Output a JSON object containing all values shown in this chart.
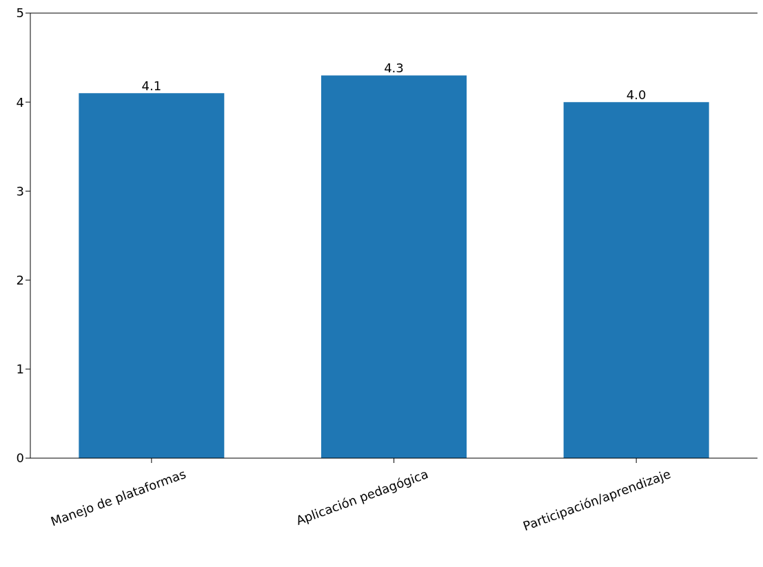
{
  "chart_data": {
    "type": "bar",
    "categories": [
      "Manejo de plataformas",
      "Aplicación pedagógica",
      "Participación/aprendizaje"
    ],
    "values": [
      4.1,
      4.3,
      4.0
    ],
    "value_labels": [
      "4.1",
      "4.3",
      "4.0"
    ],
    "color": "#1f77b4",
    "ylim": [
      0,
      5
    ],
    "yticks": [
      0,
      1,
      2,
      3,
      4,
      5
    ],
    "grid": false
  }
}
